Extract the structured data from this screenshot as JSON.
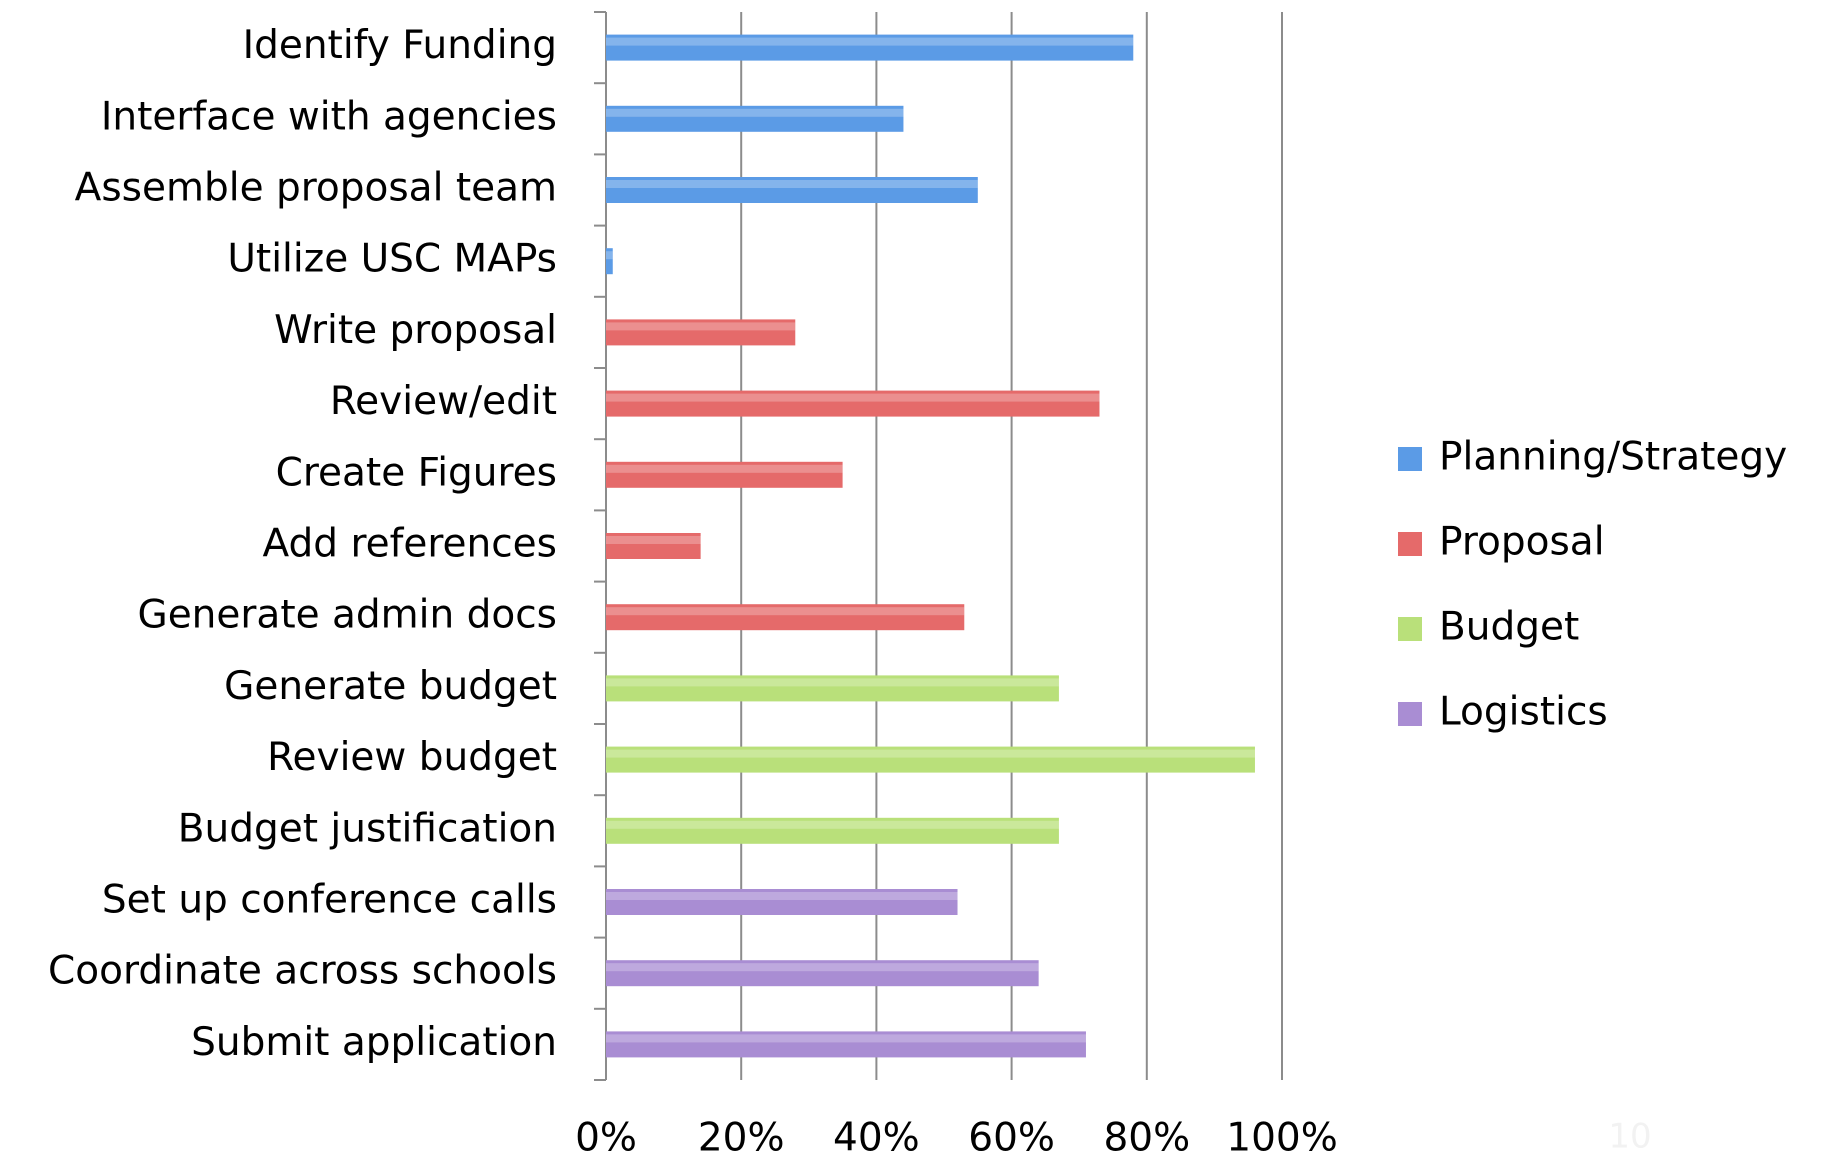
{
  "chart_data": {
    "type": "bar",
    "orientation": "horizontal",
    "categories": [
      "Identify Funding",
      "Interface with agencies",
      "Assemble proposal team",
      "Utilize USC MAPs",
      "Write proposal",
      "Review/edit",
      "Create Figures",
      "Add references",
      "Generate admin docs",
      "Generate budget",
      "Review budget",
      "Budget justification",
      "Set up conference calls",
      "Coordinate across schools",
      "Submit application"
    ],
    "series": [
      {
        "name": "Planning/Strategy",
        "color": "#5b9be6",
        "values": [
          78,
          44,
          55,
          1,
          null,
          null,
          null,
          null,
          null,
          null,
          null,
          null,
          null,
          null,
          null
        ]
      },
      {
        "name": "Proposal",
        "color": "#e56a6a",
        "values": [
          null,
          null,
          null,
          null,
          28,
          73,
          35,
          14,
          53,
          null,
          null,
          null,
          null,
          null,
          null
        ]
      },
      {
        "name": "Budget",
        "color": "#b9e07a",
        "values": [
          null,
          null,
          null,
          null,
          null,
          null,
          null,
          null,
          null,
          67,
          96,
          67,
          null,
          null,
          null
        ]
      },
      {
        "name": "Logistics",
        "color": "#a98dd3",
        "values": [
          null,
          null,
          null,
          null,
          null,
          null,
          null,
          null,
          null,
          null,
          null,
          null,
          52,
          64,
          71
        ]
      }
    ],
    "xlim": [
      0,
      100
    ],
    "xticks": [
      {
        "value": 0,
        "label": "0%"
      },
      {
        "value": 20,
        "label": "20%"
      },
      {
        "value": 40,
        "label": "40%"
      },
      {
        "value": 60,
        "label": "60%"
      },
      {
        "value": 80,
        "label": "80%"
      },
      {
        "value": 100,
        "label": "100%"
      }
    ],
    "grid": true,
    "legend": "right"
  },
  "page_number": "10"
}
